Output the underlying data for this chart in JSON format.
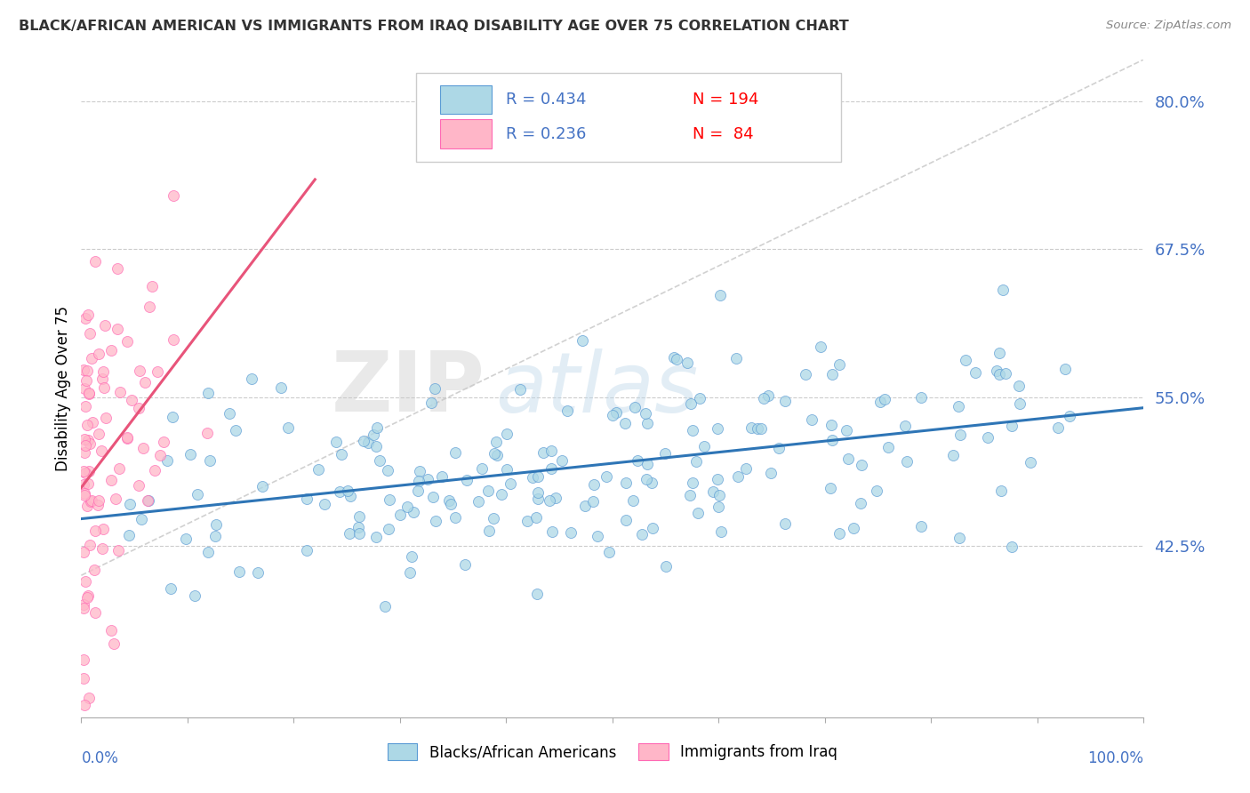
{
  "title": "BLACK/AFRICAN AMERICAN VS IMMIGRANTS FROM IRAQ DISABILITY AGE OVER 75 CORRELATION CHART",
  "source": "Source: ZipAtlas.com",
  "ylabel": "Disability Age Over 75",
  "xlim": [
    0,
    1
  ],
  "ylim": [
    0.28,
    0.835
  ],
  "yticks": [
    0.425,
    0.55,
    0.675,
    0.8
  ],
  "ytick_labels": [
    "42.5%",
    "55.0%",
    "67.5%",
    "80.0%"
  ],
  "blue_color": "#ADD8E6",
  "blue_edge_color": "#5B9BD5",
  "blue_line_color": "#2E75B6",
  "pink_color": "#FFB6C8",
  "pink_edge_color": "#FF69B4",
  "pink_line_color": "#E8547A",
  "blue_R": 0.434,
  "blue_N": 194,
  "pink_R": 0.236,
  "pink_N": 84,
  "legend_text_color": "#4472C4",
  "legend_n_color": "#FF0000",
  "axis_color": "#4472C4",
  "watermark_zip_color": "#D0D0D0",
  "watermark_atlas_color": "#ADD8E6"
}
